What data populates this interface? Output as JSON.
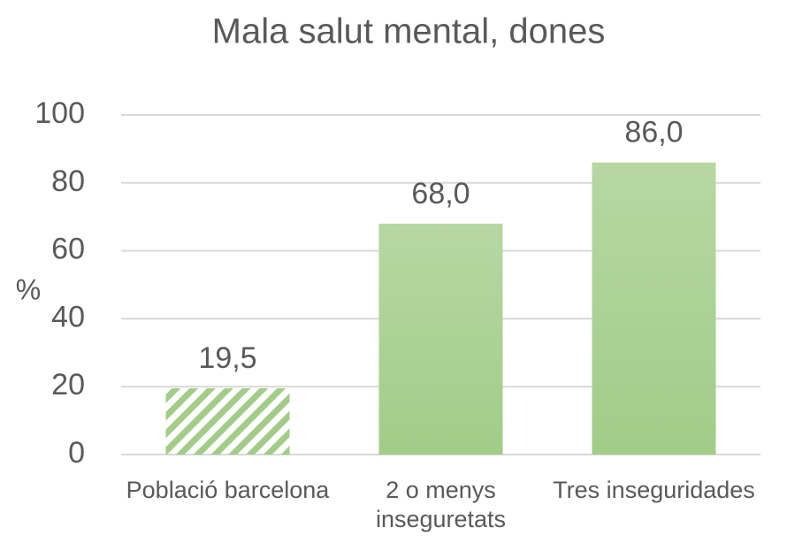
{
  "chart_data": {
    "type": "bar",
    "title": "Mala salut mental, dones",
    "y_label": "%",
    "categories": [
      "Població barcelona",
      "2 o menys inseguretats",
      "Tres inseguridades"
    ],
    "values": [
      19.5,
      68.0,
      86.0
    ],
    "value_labels": [
      "19,5",
      "68,0",
      "86,0"
    ],
    "patterns": [
      "hatch",
      "solid",
      "solid"
    ],
    "color": "#a2cc88",
    "ylim": [
      0,
      100
    ],
    "yticks": [
      0,
      20,
      40,
      60,
      80,
      100
    ],
    "grid": true
  }
}
